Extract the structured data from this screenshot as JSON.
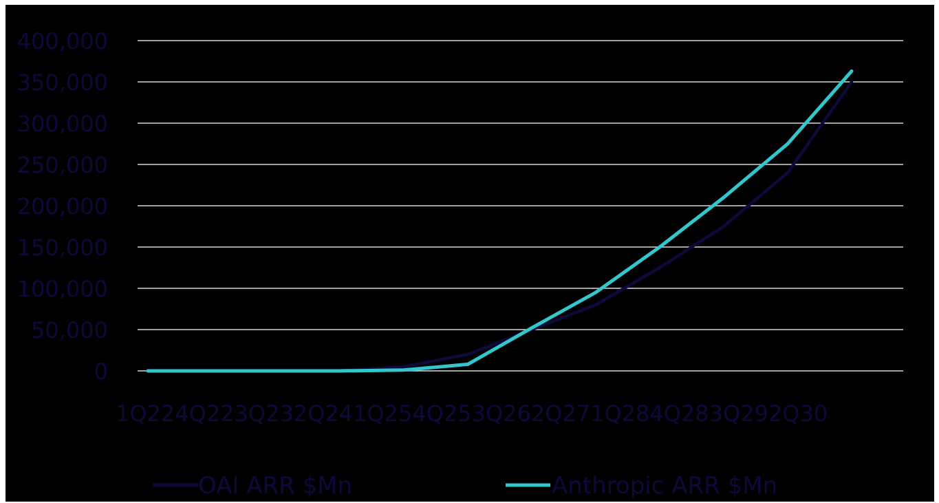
{
  "chart_data": {
    "type": "line",
    "categories": [
      "1Q22",
      "4Q22",
      "3Q23",
      "2Q24",
      "1Q25",
      "4Q25",
      "3Q26",
      "2Q27",
      "1Q28",
      "4Q28",
      "3Q29",
      "2Q30"
    ],
    "x_tick_labels": [
      "1Q22",
      "4Q22",
      "3Q23",
      "2Q24",
      "1Q25",
      "4Q25",
      "3Q26",
      "2Q27",
      "1Q28",
      "4Q28",
      "3Q29",
      "2Q30"
    ],
    "y_ticks": [
      0,
      50000,
      100000,
      150000,
      200000,
      250000,
      300000,
      350000,
      400000
    ],
    "y_tick_labels": [
      "0",
      "50,000",
      "100,000",
      "150,000",
      "200,000",
      "250,000",
      "300,000",
      "350,000",
      "400,000"
    ],
    "ylim": [
      0,
      400000
    ],
    "grid": true,
    "legend_position": "bottom",
    "series": [
      {
        "name": "OAI ARR $Mn",
        "color": "#0b0a3a",
        "values": [
          0,
          0,
          0,
          200,
          5000,
          20000,
          50000,
          80000,
          125000,
          175000,
          240000,
          350000
        ]
      },
      {
        "name": "Anthropic ARR $Mn",
        "color": "#33c6cc",
        "values": [
          0,
          0,
          0,
          0,
          1000,
          8000,
          52000,
          95000,
          150000,
          210000,
          275000,
          363000
        ]
      }
    ]
  }
}
